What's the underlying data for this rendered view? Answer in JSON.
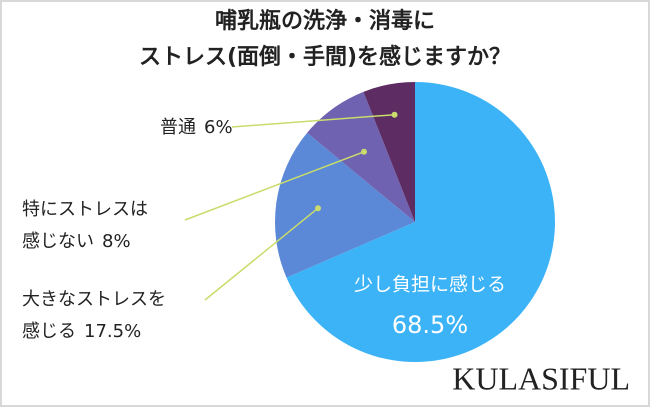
{
  "chart_data": {
    "type": "pie",
    "title": [
      "哺乳瓶の洗浄・消毒に",
      "ストレス(面倒・手間)を感じますか？"
    ],
    "categories": [
      "少し負担に感じる",
      "大きなストレスを感じる",
      "特にストレスは感じない",
      "普通"
    ],
    "values": [
      68.5,
      17.5,
      8,
      6
    ],
    "value_labels": [
      "68.5%",
      "17.5%",
      "8%",
      "6%"
    ],
    "colors": [
      "#3db3f7",
      "#5b88d7",
      "#6f62b0",
      "#5c2c63"
    ],
    "brand": "KULASIFUL"
  }
}
